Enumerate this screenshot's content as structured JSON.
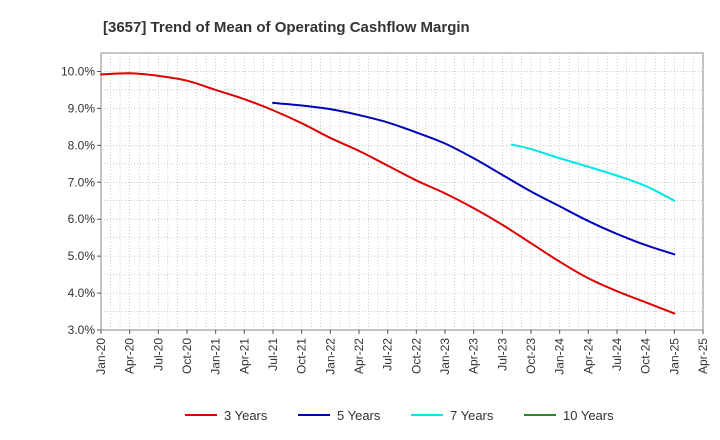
{
  "chart_data": {
    "type": "line",
    "title": "[3657]  Trend of Mean of Operating Cashflow Margin",
    "xlabel": "",
    "ylabel": "",
    "ylim": [
      3.0,
      10.5
    ],
    "y_ticks": [
      3.0,
      4.0,
      5.0,
      6.0,
      7.0,
      8.0,
      9.0,
      10.0
    ],
    "y_tick_labels": [
      "3.0%",
      "4.0%",
      "5.0%",
      "6.0%",
      "7.0%",
      "8.0%",
      "9.0%",
      "10.0%"
    ],
    "x_tick_labels": [
      "Jan-20",
      "Apr-20",
      "Jul-20",
      "Oct-20",
      "Jan-21",
      "Apr-21",
      "Jul-21",
      "Oct-21",
      "Jan-22",
      "Apr-22",
      "Jul-22",
      "Oct-22",
      "Jan-23",
      "Apr-23",
      "Jul-23",
      "Oct-23",
      "Jan-24",
      "Apr-24",
      "Jul-24",
      "Oct-24",
      "Jan-25",
      "Apr-25"
    ],
    "x_range_months": [
      0,
      63
    ],
    "grid": true,
    "legend_position": "bottom",
    "series": [
      {
        "name": "3 Years",
        "color": "#dd0000",
        "points": [
          [
            0,
            9.92
          ],
          [
            3,
            9.95
          ],
          [
            6,
            9.88
          ],
          [
            9,
            9.75
          ],
          [
            12,
            9.5
          ],
          [
            15,
            9.25
          ],
          [
            18,
            8.95
          ],
          [
            21,
            8.6
          ],
          [
            24,
            8.2
          ],
          [
            27,
            7.85
          ],
          [
            30,
            7.45
          ],
          [
            33,
            7.05
          ],
          [
            36,
            6.7
          ],
          [
            39,
            6.3
          ],
          [
            42,
            5.85
          ],
          [
            45,
            5.35
          ],
          [
            48,
            4.85
          ],
          [
            51,
            4.4
          ],
          [
            54,
            4.05
          ],
          [
            57,
            3.75
          ],
          [
            60,
            3.45
          ]
        ]
      },
      {
        "name": "5 Years",
        "color": "#0000bb",
        "points": [
          [
            18,
            9.15
          ],
          [
            21,
            9.08
          ],
          [
            24,
            8.98
          ],
          [
            27,
            8.82
          ],
          [
            30,
            8.62
          ],
          [
            33,
            8.35
          ],
          [
            36,
            8.05
          ],
          [
            39,
            7.65
          ],
          [
            42,
            7.2
          ],
          [
            45,
            6.75
          ],
          [
            48,
            6.35
          ],
          [
            51,
            5.95
          ],
          [
            54,
            5.6
          ],
          [
            57,
            5.3
          ],
          [
            60,
            5.05
          ]
        ]
      },
      {
        "name": "7 Years",
        "color": "#00e5e5",
        "points": [
          [
            43,
            8.02
          ],
          [
            45,
            7.9
          ],
          [
            48,
            7.65
          ],
          [
            51,
            7.42
          ],
          [
            54,
            7.18
          ],
          [
            57,
            6.9
          ],
          [
            60,
            6.5
          ]
        ]
      },
      {
        "name": "10 Years",
        "color": "#228b22",
        "points": []
      }
    ]
  }
}
